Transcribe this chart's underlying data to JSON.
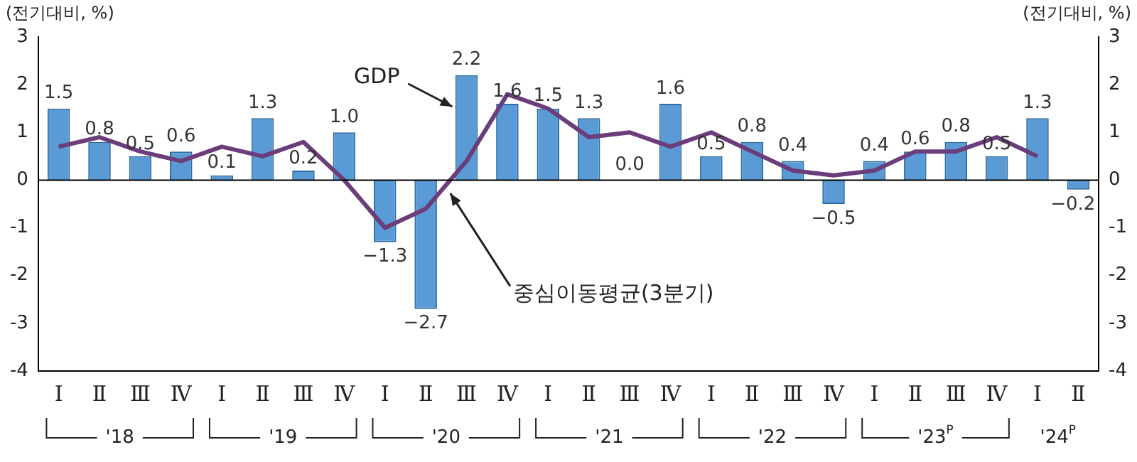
{
  "chart_data": {
    "type": "bar",
    "ylabel": "(전기대비, %)",
    "y2label": "(전기대비, %)",
    "categories": [
      "Ⅰ",
      "Ⅱ",
      "Ⅲ",
      "Ⅳ",
      "Ⅰ",
      "Ⅱ",
      "Ⅲ",
      "Ⅳ",
      "Ⅰ",
      "Ⅱ",
      "Ⅲ",
      "Ⅳ",
      "Ⅰ",
      "Ⅱ",
      "Ⅲ",
      "Ⅳ",
      "Ⅰ",
      "Ⅱ",
      "Ⅲ",
      "Ⅳ",
      "Ⅰ",
      "Ⅱ",
      "Ⅲ",
      "Ⅳ",
      "Ⅰ",
      "Ⅱ"
    ],
    "series": [
      {
        "name": "GDP",
        "type": "bar",
        "color": "#5b9bd5",
        "values": [
          1.5,
          0.8,
          0.5,
          0.6,
          0.1,
          1.3,
          0.2,
          1.0,
          -1.3,
          -2.7,
          2.2,
          1.6,
          1.5,
          1.3,
          0.0,
          1.6,
          0.5,
          0.8,
          0.4,
          -0.5,
          0.4,
          0.6,
          0.8,
          0.5,
          1.3,
          -0.2
        ],
        "value_labels": [
          "1.5",
          "0.8",
          "0.5",
          "0.6",
          "0.1",
          "1.3",
          "0.2",
          "1.0",
          "−1.3",
          "−2.7",
          "2.2",
          "1.6",
          "1.5",
          "1.3",
          "0.0",
          "1.6",
          "0.5",
          "0.8",
          "0.4",
          "−0.5",
          "0.4",
          "0.6",
          "0.8",
          "0.5",
          "1.3",
          "−0.2"
        ]
      },
      {
        "name": "중심이동평균(3분기)",
        "type": "line",
        "color": "#6b3d7b",
        "values": [
          0.7,
          0.9,
          0.6,
          0.4,
          0.7,
          0.5,
          0.8,
          0.0,
          -1.0,
          -0.6,
          0.4,
          1.8,
          1.5,
          0.9,
          1.0,
          0.7,
          1.0,
          0.6,
          0.2,
          0.1,
          0.2,
          0.6,
          0.6,
          0.9,
          0.5,
          null
        ]
      }
    ],
    "ylim": [
      -4,
      3
    ],
    "yticks": [
      -4,
      -3,
      -2,
      -1,
      0,
      1,
      2,
      3
    ],
    "y2lim": [
      -4,
      3
    ],
    "y2ticks": [
      -4,
      -3,
      -2,
      -1,
      0,
      1,
      2,
      3
    ],
    "annotations": [
      "'18",
      "'19",
      "'20",
      "'21",
      "'22",
      "'23$^{P}$",
      "'24$^{P}$"
    ],
    "ref_lines": [
      {
        "axis": "y",
        "value": 0
      }
    ],
    "grid": false,
    "legend": false,
    "marker": "none",
    "line_style": "solid"
  }
}
